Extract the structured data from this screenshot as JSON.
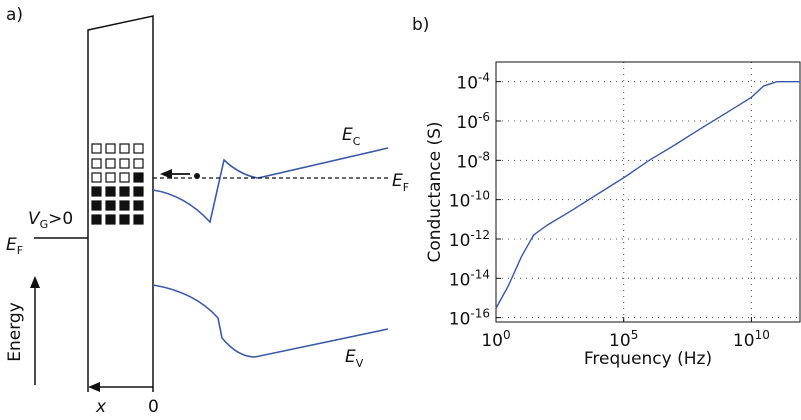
{
  "diagram": {
    "label": "a)",
    "ec": [
      "E",
      "C"
    ],
    "ef_right": [
      "E",
      "F"
    ],
    "ef_left": [
      "E",
      "F"
    ],
    "ev": [
      "E",
      "V"
    ],
    "vg": [
      "V",
      "G",
      ">0"
    ],
    "energy": "Energy",
    "x": "x",
    "zero": "0"
  },
  "chart_data": {
    "type": "line",
    "panel_label": "b)",
    "xlabel": "Frequency (Hz)",
    "ylabel": "Conductance (S)",
    "log_x": true,
    "log_y": true,
    "grid": true,
    "xlim": [
      1,
      800000000000
    ],
    "ylim": [
      6e-17,
      0.001
    ],
    "xticks": [
      {
        "value": 1,
        "label": "100"
      },
      {
        "value": 100000,
        "label": "105"
      },
      {
        "value": 10000000000,
        "label": "1010"
      }
    ],
    "yticks": [
      {
        "value": 0.0001,
        "label": "10-4"
      },
      {
        "value": 1e-06,
        "label": "10-6"
      },
      {
        "value": 1e-08,
        "label": "10-8"
      },
      {
        "value": 1e-10,
        "label": "10-10"
      },
      {
        "value": 1e-12,
        "label": "10-12"
      },
      {
        "value": 1e-14,
        "label": "10-14"
      },
      {
        "value": 1e-16,
        "label": "10-16"
      }
    ],
    "series": [
      {
        "color": "#3a5aa8",
        "x": [
          1,
          3,
          10,
          30,
          100,
          1000,
          10000,
          100000,
          1000000,
          10000000,
          100000000,
          1000000000,
          10000000000,
          30000000000,
          100000000000,
          800000000000
        ],
        "values": [
          3e-16,
          4e-15,
          1.3e-13,
          1.6e-12,
          5e-12,
          3e-11,
          2e-10,
          1.3e-09,
          1e-08,
          6e-08,
          4e-07,
          2.5e-06,
          1.6e-05,
          6e-05,
          0.0001,
          0.0001
        ]
      }
    ]
  }
}
